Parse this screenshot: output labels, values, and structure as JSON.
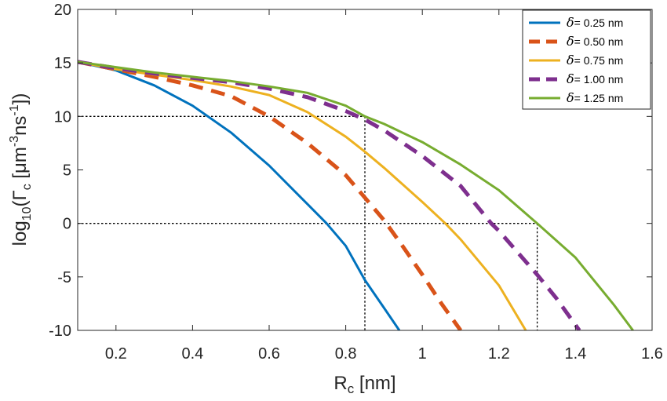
{
  "chart_data": {
    "type": "line",
    "xlabel": {
      "main": "R",
      "sub": "c",
      "unit": " [nm]"
    },
    "ylabel": {
      "prefix": "log",
      "prefix_sub": "10",
      "open": "(Γ",
      "gamma_sub": "c",
      "unit_open": " [μm",
      "sup1": "-3",
      "mid": "ns",
      "sup2": "-1",
      "close": "])"
    },
    "xlim": [
      0.1,
      1.6
    ],
    "ylim": [
      -10,
      20
    ],
    "xticks": [
      0.2,
      0.4,
      0.6,
      0.8,
      1.0,
      1.2,
      1.4,
      1.6
    ],
    "xtick_labels": [
      "0.2",
      "0.4",
      "0.6",
      "0.8",
      "1",
      "1.2",
      "1.4",
      "1.6"
    ],
    "yticks": [
      -10,
      -5,
      0,
      5,
      10,
      15,
      20
    ],
    "ytick_labels": [
      "-10",
      "-5",
      "0",
      "5",
      "10",
      "15",
      "20"
    ],
    "grid": false,
    "legend_position": "top-right",
    "series": [
      {
        "name": "δ= 0.25 nm",
        "delta": "δ",
        "label_rest": "= 0.25 nm",
        "color": "#0072BD",
        "dashed": false,
        "x": [
          0.1,
          0.2,
          0.3,
          0.4,
          0.5,
          0.6,
          0.7,
          0.75,
          0.8,
          0.85,
          0.9,
          0.94
        ],
        "y": [
          15.1,
          14.3,
          12.9,
          11.0,
          8.5,
          5.4,
          1.8,
          0.0,
          -2.1,
          -5.3,
          -7.9,
          -10.0
        ]
      },
      {
        "name": "δ= 0.50 nm",
        "delta": "δ",
        "label_rest": "= 0.50 nm",
        "color": "#D95319",
        "dashed": true,
        "x": [
          0.1,
          0.2,
          0.3,
          0.4,
          0.5,
          0.6,
          0.7,
          0.8,
          0.85,
          0.9,
          0.95,
          1.0,
          1.05,
          1.1
        ],
        "y": [
          15.1,
          14.4,
          13.7,
          12.9,
          11.9,
          10.0,
          7.5,
          4.5,
          2.4,
          0.3,
          -2.2,
          -4.8,
          -7.5,
          -10.0
        ]
      },
      {
        "name": "δ= 0.75 nm",
        "delta": "δ",
        "label_rest": "= 0.75 nm",
        "color": "#EDB120",
        "dashed": false,
        "x": [
          0.1,
          0.2,
          0.3,
          0.4,
          0.5,
          0.6,
          0.7,
          0.8,
          0.85,
          0.9,
          1.0,
          1.06,
          1.1,
          1.2,
          1.27
        ],
        "y": [
          15.1,
          14.4,
          13.9,
          13.4,
          12.8,
          12.0,
          10.4,
          8.1,
          6.7,
          5.2,
          2.0,
          0.0,
          -1.5,
          -5.8,
          -10.0
        ]
      },
      {
        "name": "δ= 1.00 nm",
        "delta": "δ",
        "label_rest": "= 1.00 nm",
        "color": "#7E2F8E",
        "dashed": true,
        "x": [
          0.1,
          0.2,
          0.3,
          0.4,
          0.5,
          0.6,
          0.7,
          0.8,
          0.85,
          0.9,
          1.0,
          1.1,
          1.18,
          1.2,
          1.3,
          1.35,
          1.41
        ],
        "y": [
          15.1,
          14.5,
          14.0,
          13.6,
          13.2,
          12.6,
          11.8,
          10.5,
          9.7,
          8.7,
          6.3,
          3.5,
          0.0,
          -0.7,
          -4.8,
          -7.0,
          -10.0
        ]
      },
      {
        "name": "δ= 1.25 nm",
        "delta": "δ",
        "label_rest": "= 1.25 nm",
        "color": "#77AC30",
        "dashed": false,
        "x": [
          0.1,
          0.2,
          0.3,
          0.4,
          0.5,
          0.6,
          0.7,
          0.8,
          0.85,
          0.9,
          1.0,
          1.1,
          1.2,
          1.3,
          1.4,
          1.5,
          1.55
        ],
        "y": [
          15.1,
          14.6,
          14.1,
          13.7,
          13.3,
          12.8,
          12.2,
          11.0,
          10.0,
          9.3,
          7.6,
          5.5,
          3.1,
          0.0,
          -3.2,
          -7.6,
          -10.0
        ]
      }
    ],
    "guides": [
      {
        "name": "horizontal-guide-10",
        "points": [
          [
            0.1,
            10
          ],
          [
            0.85,
            10
          ]
        ]
      },
      {
        "name": "vertical-guide-085",
        "points": [
          [
            0.85,
            10
          ],
          [
            0.85,
            -10
          ]
        ]
      },
      {
        "name": "horizontal-guide-0",
        "points": [
          [
            0.1,
            0
          ],
          [
            1.3,
            0
          ]
        ]
      },
      {
        "name": "vertical-guide-13",
        "points": [
          [
            1.3,
            0
          ],
          [
            1.3,
            -10
          ]
        ]
      }
    ]
  }
}
